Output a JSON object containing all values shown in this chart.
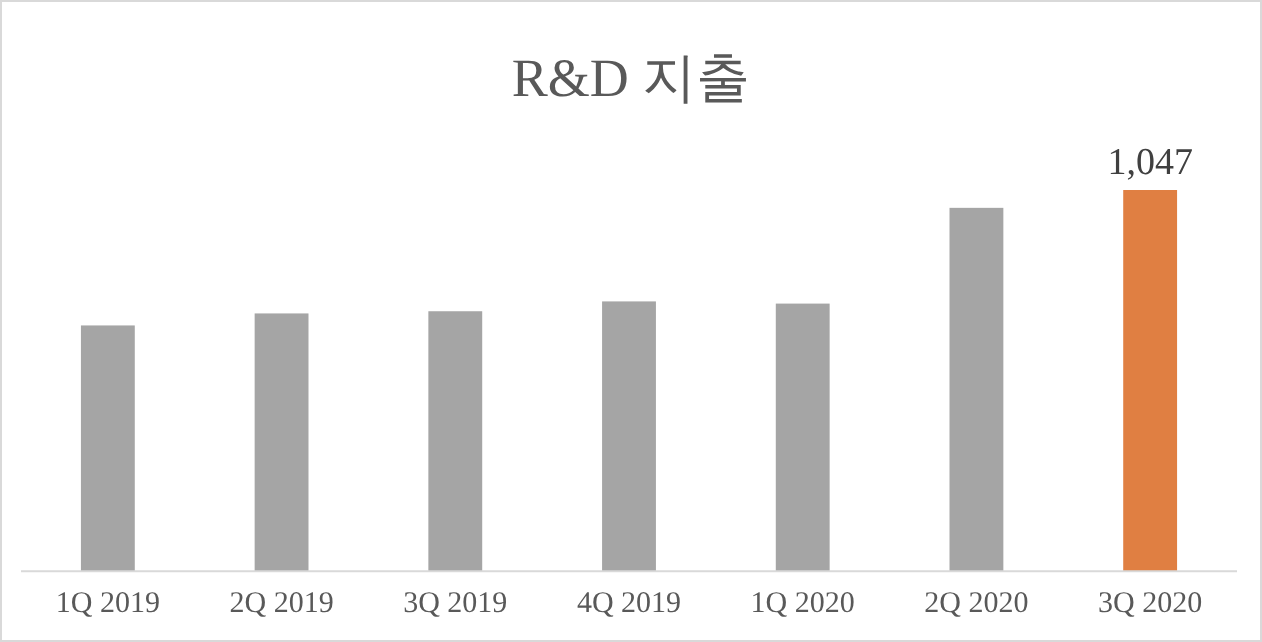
{
  "chart_data": {
    "type": "bar",
    "title": "R&D 지출",
    "categories": [
      "1Q 2019",
      "2Q 2019",
      "3Q 2019",
      "4Q 2019",
      "1Q 2020",
      "2Q 2020",
      "3Q 2020"
    ],
    "values": [
      675,
      708,
      714,
      741,
      735,
      998,
      1047
    ],
    "colors": [
      "#a5a5a5",
      "#a5a5a5",
      "#a5a5a5",
      "#a5a5a5",
      "#a5a5a5",
      "#a5a5a5",
      "#e07f42"
    ],
    "value_labels": [
      null,
      null,
      null,
      null,
      null,
      null,
      "1,047"
    ]
  }
}
